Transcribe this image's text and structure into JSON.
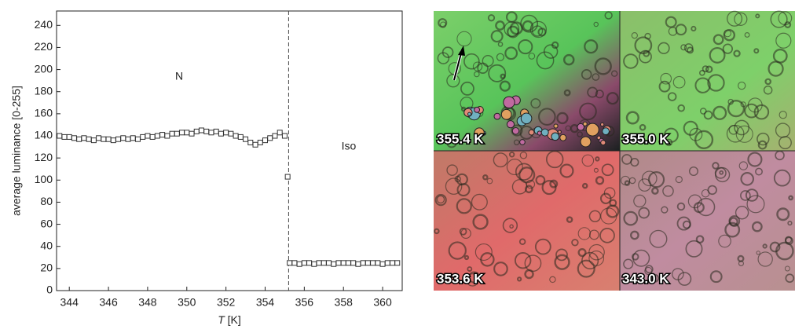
{
  "chart_data": {
    "type": "scatter",
    "y_label": "average luminance [0-255]",
    "x_label_symbol": "T",
    "x_label_unit": "[K]",
    "annotations": [
      "N",
      "Iso"
    ],
    "transition_x": 355.2,
    "xlim": [
      343.35,
      361
    ],
    "ylim": [
      0,
      253
    ],
    "xticks": [
      344,
      346,
      348,
      350,
      352,
      354,
      356,
      358,
      360
    ],
    "yticks": [
      0,
      20,
      40,
      60,
      80,
      100,
      120,
      140,
      160,
      180,
      200,
      220,
      240
    ],
    "marker_color": "#333333",
    "x": [
      343.5,
      343.75,
      344,
      344.25,
      344.5,
      344.75,
      345,
      345.25,
      345.5,
      345.75,
      346,
      346.25,
      346.5,
      346.75,
      347,
      347.25,
      347.5,
      347.75,
      348,
      348.25,
      348.5,
      348.75,
      349,
      349.25,
      349.5,
      349.75,
      350,
      350.25,
      350.5,
      350.75,
      351,
      351.25,
      351.5,
      351.75,
      352,
      352.25,
      352.5,
      352.75,
      353,
      353.25,
      353.5,
      353.75,
      354,
      354.25,
      354.5,
      354.75,
      355,
      355.15,
      355.25,
      355.5,
      355.75,
      356,
      356.25,
      356.5,
      356.75,
      357,
      357.25,
      357.5,
      357.75,
      358,
      358.25,
      358.5,
      358.75,
      359,
      359.25,
      359.5,
      359.75,
      360,
      360.25,
      360.5,
      360.75
    ],
    "values": [
      140,
      139,
      139,
      138,
      137,
      138,
      137,
      136,
      138,
      137,
      137,
      136,
      137,
      138,
      137,
      138,
      137,
      139,
      140,
      139,
      140,
      141,
      140,
      142,
      142,
      143,
      143,
      142,
      144,
      145,
      144,
      143,
      144,
      142,
      143,
      142,
      140,
      139,
      137,
      134,
      132,
      134,
      136,
      138,
      140,
      143,
      140,
      103,
      25,
      25,
      24,
      25,
      25,
      24,
      25,
      25,
      25,
      24,
      25,
      25,
      25,
      25,
      24,
      25,
      25,
      25,
      25,
      24,
      25,
      25,
      25
    ]
  },
  "images": {
    "labels": [
      "355.4 K",
      "355.0 K",
      "353.6 K",
      "343.0 K"
    ]
  }
}
